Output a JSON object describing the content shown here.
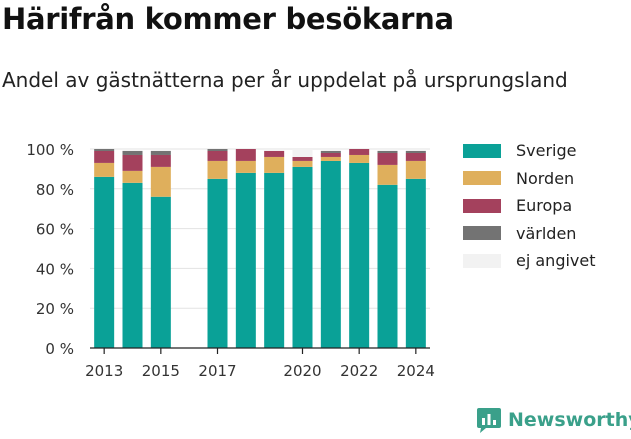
{
  "title": "Härifrån kommer besökarna",
  "subtitle": "Andel av gästnätterna per år uppdelat på ursprungsland",
  "brand": {
    "name": "Newsworthy",
    "icon": "newsworthy-logo-icon"
  },
  "chart_data": {
    "type": "bar",
    "stacked": true,
    "categories": [
      "2013",
      "2014",
      "2015",
      "2016",
      "2017",
      "2018",
      "2019",
      "2020",
      "2021",
      "2022",
      "2023",
      "2024"
    ],
    "missing_categories": [
      "2016"
    ],
    "x_tick_labels": [
      "2013",
      "2015",
      "2017",
      "2020",
      "2022",
      "2024"
    ],
    "y_ticks": [
      "0 %",
      "20 %",
      "40 %",
      "60 %",
      "80 %",
      "100 %"
    ],
    "ylim": [
      0,
      100
    ],
    "grid": true,
    "legend_position": "right",
    "series": [
      {
        "name": "Sverige",
        "color": "#0aa197",
        "values": [
          86,
          83,
          76,
          null,
          85,
          88,
          88,
          91,
          94,
          93,
          82,
          85
        ]
      },
      {
        "name": "Norden",
        "color": "#dfaf5c",
        "values": [
          7,
          6,
          15,
          null,
          9,
          6,
          8,
          3,
          2,
          4,
          10,
          9
        ]
      },
      {
        "name": "Europa",
        "color": "#a4415d",
        "values": [
          6,
          8,
          6,
          null,
          5,
          6,
          3,
          2,
          2,
          3,
          6,
          4
        ]
      },
      {
        "name": "världen",
        "color": "#737373",
        "values": [
          1,
          2,
          2,
          null,
          1,
          0,
          0,
          0,
          1,
          0,
          1,
          1
        ]
      },
      {
        "name": "ej angivet",
        "color": "#f2f2f2",
        "values": [
          0,
          1,
          1,
          null,
          0,
          0,
          1,
          4,
          1,
          0,
          1,
          1
        ]
      }
    ]
  }
}
